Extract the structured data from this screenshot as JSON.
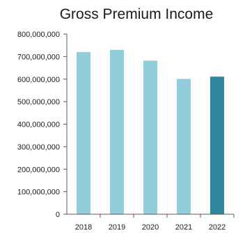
{
  "chart_data": {
    "type": "bar",
    "title": "Gross Premium Income",
    "xlabel": "",
    "ylabel": "",
    "categories": [
      "2018",
      "2019",
      "2020",
      "2021",
      "2022"
    ],
    "values": [
      720000000,
      730000000,
      682000000,
      601000000,
      611000000
    ],
    "ylim": [
      0,
      800000000
    ],
    "yticks": [
      0,
      100000000,
      200000000,
      300000000,
      400000000,
      500000000,
      600000000,
      700000000,
      800000000
    ],
    "ytick_labels": [
      "0",
      "100,000,000",
      "200,000,000",
      "300,000,000",
      "400,000,000",
      "500,000,000",
      "600,000,000",
      "700,000,000",
      "800,000,000"
    ],
    "grid": false,
    "colors": {
      "bar": "#92CDDC",
      "highlight": "#31859C",
      "axis": "#595959"
    },
    "highlight_category": "2022"
  }
}
